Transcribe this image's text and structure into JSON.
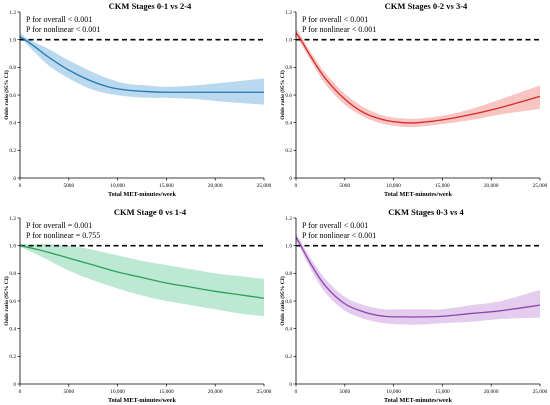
{
  "chart_data": [
    {
      "type": "line",
      "title": "CKM Stages 0-1 vs 2-4",
      "xlabel": "Total MET-minutes/week",
      "ylabel": "Odds ratio (95% CI)",
      "xlim": [
        0,
        25000
      ],
      "ylim": [
        0,
        1.2
      ],
      "xticks": [
        "0",
        "5000",
        "10,000",
        "15,000",
        "20,000",
        "25,000"
      ],
      "yticks": [
        "0",
        "0.2",
        "0.4",
        "0.6",
        "0.8",
        "1.0",
        "1.2"
      ],
      "reference_line": 1.0,
      "annotations": [
        "P for overall < 0.001",
        "P for nonlinear < 0.001"
      ],
      "color": "#1f77b4",
      "band_color": "#b3d4ec",
      "series": [
        {
          "x": [
            0,
            500,
            1500,
            3000,
            5000,
            7000,
            9000,
            11000,
            13000,
            15000,
            18000,
            21000,
            25000
          ],
          "values": [
            1.02,
            1.0,
            0.95,
            0.87,
            0.78,
            0.71,
            0.66,
            0.635,
            0.625,
            0.62,
            0.62,
            0.62,
            0.62
          ],
          "lower": [
            1.0,
            0.98,
            0.91,
            0.81,
            0.72,
            0.65,
            0.61,
            0.59,
            0.58,
            0.58,
            0.57,
            0.55,
            0.53
          ],
          "upper": [
            1.05,
            1.02,
            0.98,
            0.93,
            0.85,
            0.78,
            0.72,
            0.68,
            0.67,
            0.66,
            0.67,
            0.69,
            0.72
          ]
        }
      ]
    },
    {
      "type": "line",
      "title": "CKM Stages 0-2 vs 3-4",
      "xlabel": "Total MET-minutes/week",
      "ylabel": "Odds ratio (95% CI)",
      "xlim": [
        0,
        25000
      ],
      "ylim": [
        0,
        1.2
      ],
      "xticks": [
        "0",
        "5000",
        "10,000",
        "15,000",
        "20,000",
        "25,000"
      ],
      "yticks": [
        "0",
        "0.2",
        "0.4",
        "0.6",
        "0.8",
        "1.0",
        "1.2"
      ],
      "reference_line": 1.0,
      "annotations": [
        "P for overall < 0.001",
        "P for nonlinear < 0.001"
      ],
      "color": "#d62728",
      "band_color": "#f7bfbd",
      "series": [
        {
          "x": [
            0,
            500,
            1500,
            3000,
            5000,
            7000,
            9000,
            11000,
            12500,
            15000,
            18000,
            21000,
            25000
          ],
          "values": [
            1.05,
            1.0,
            0.88,
            0.72,
            0.57,
            0.47,
            0.42,
            0.4,
            0.4,
            0.42,
            0.46,
            0.51,
            0.59
          ],
          "lower": [
            1.02,
            0.97,
            0.85,
            0.68,
            0.53,
            0.44,
            0.39,
            0.37,
            0.37,
            0.39,
            0.42,
            0.46,
            0.5
          ],
          "upper": [
            1.08,
            1.03,
            0.91,
            0.76,
            0.61,
            0.51,
            0.45,
            0.43,
            0.43,
            0.45,
            0.5,
            0.57,
            0.67
          ]
        }
      ]
    },
    {
      "type": "line",
      "title": "CKM Stage 0 vs 1-4",
      "xlabel": "Total MET-minutes/week",
      "ylabel": "Odds ratio (95% CI)",
      "xlim": [
        0,
        25000
      ],
      "ylim": [
        0,
        1.2
      ],
      "xticks": [
        "0",
        "5000",
        "10,000",
        "15,000",
        "20,000",
        "25,000"
      ],
      "yticks": [
        "0",
        "0.2",
        "0.4",
        "0.6",
        "0.8",
        "1.0",
        "1.2"
      ],
      "reference_line": 1.0,
      "annotations": [
        "P for overall = 0.001",
        "P for nonlinear = 0.755"
      ],
      "color": "#2ca05a",
      "band_color": "#b5e6cf",
      "series": [
        {
          "x": [
            0,
            1000,
            2500,
            5000,
            7500,
            10000,
            12500,
            15000,
            17500,
            20000,
            22500,
            25000
          ],
          "values": [
            1.0,
            0.985,
            0.96,
            0.91,
            0.86,
            0.81,
            0.77,
            0.73,
            0.7,
            0.67,
            0.645,
            0.62
          ],
          "lower": [
            0.99,
            0.96,
            0.91,
            0.82,
            0.75,
            0.69,
            0.64,
            0.6,
            0.57,
            0.54,
            0.51,
            0.49
          ],
          "upper": [
            1.01,
            1.01,
            1.01,
            1.0,
            0.97,
            0.93,
            0.89,
            0.86,
            0.83,
            0.8,
            0.78,
            0.76
          ]
        }
      ]
    },
    {
      "type": "line",
      "title": "CKM Stages 0-3 vs 4",
      "xlabel": "Total MET-minutes/week",
      "ylabel": "Odds ratio (95% CI)",
      "xlim": [
        0,
        25000
      ],
      "ylim": [
        0,
        1.2
      ],
      "xticks": [
        "0",
        "5000",
        "10,000",
        "15,000",
        "20,000",
        "25,000"
      ],
      "yticks": [
        "0",
        "0.2",
        "0.4",
        "0.6",
        "0.8",
        "1.0",
        "1.2"
      ],
      "reference_line": 1.0,
      "annotations": [
        "P for overall < 0.001",
        "P for nonlinear < 0.001"
      ],
      "color": "#8e44ad",
      "band_color": "#e0c6ec",
      "series": [
        {
          "x": [
            0,
            500,
            1500,
            3000,
            5000,
            7000,
            9000,
            11000,
            13000,
            15000,
            18000,
            21000,
            25000
          ],
          "values": [
            1.06,
            1.0,
            0.87,
            0.71,
            0.58,
            0.52,
            0.49,
            0.485,
            0.485,
            0.49,
            0.51,
            0.53,
            0.57
          ],
          "lower": [
            1.03,
            0.97,
            0.83,
            0.66,
            0.53,
            0.47,
            0.44,
            0.43,
            0.43,
            0.44,
            0.45,
            0.47,
            0.48
          ],
          "upper": [
            1.09,
            1.03,
            0.91,
            0.76,
            0.63,
            0.57,
            0.54,
            0.54,
            0.54,
            0.54,
            0.57,
            0.6,
            0.68
          ]
        }
      ]
    }
  ]
}
